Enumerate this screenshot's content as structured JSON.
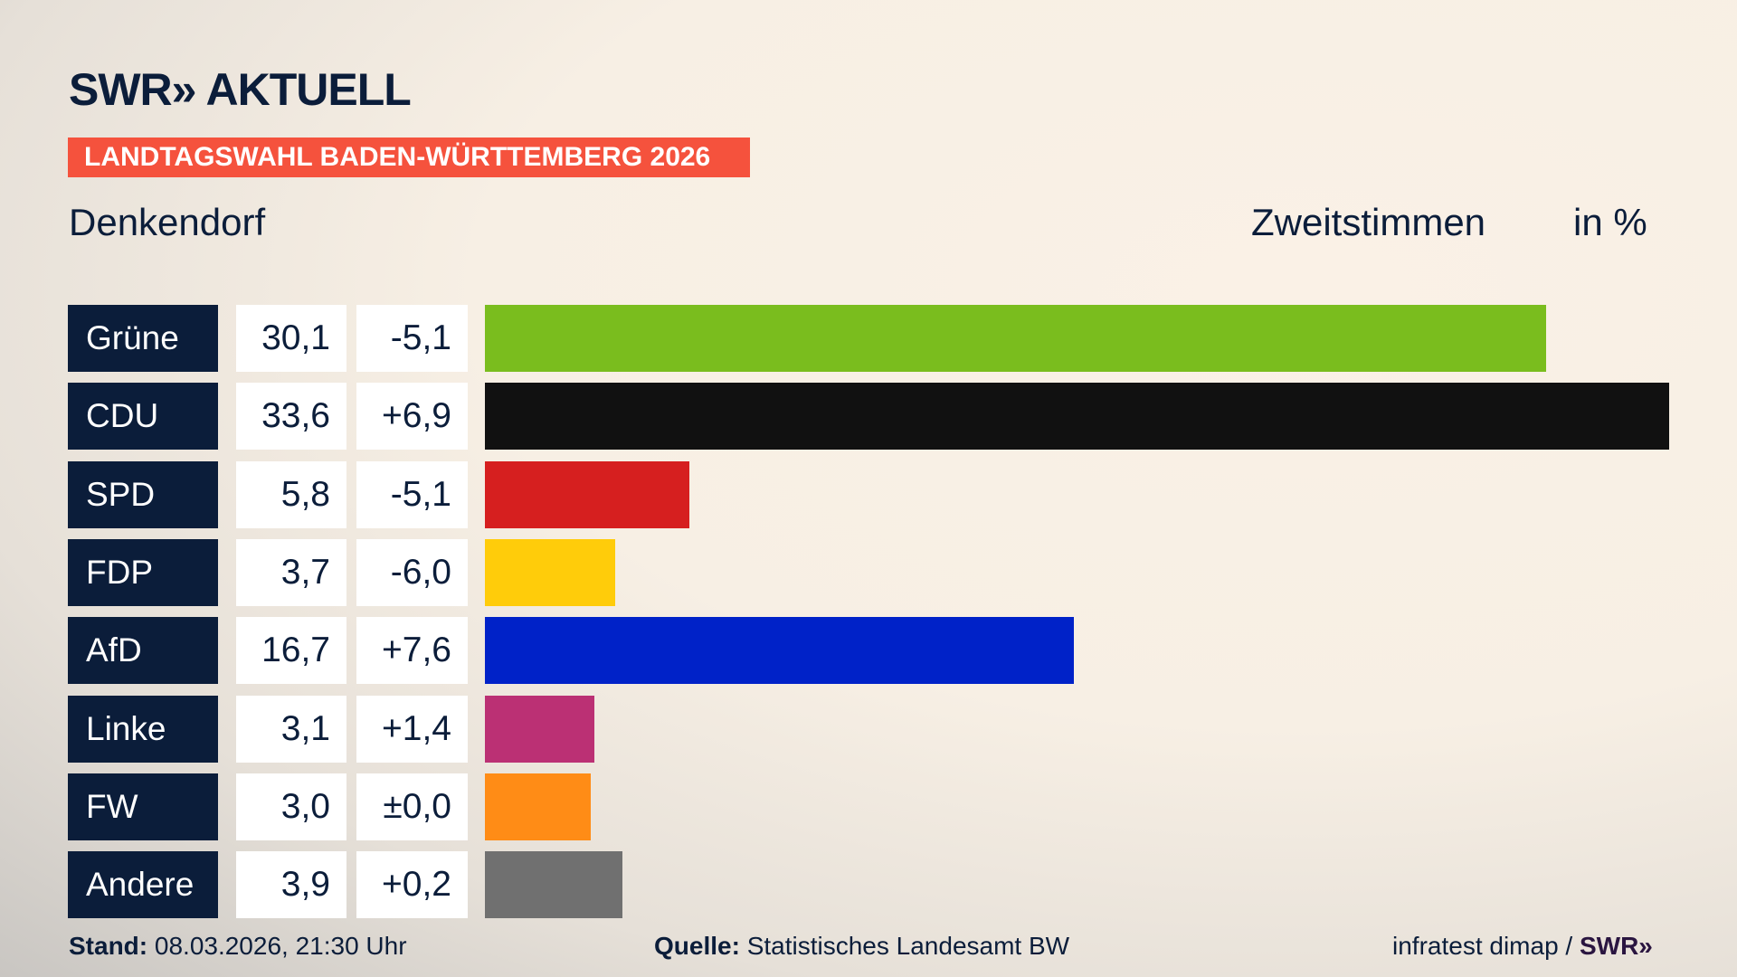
{
  "header": {
    "logo": "SWR» AKTUELL",
    "banner": "LANDTAGSWAHL BADEN-WÜRTTEMBERG 2026",
    "place": "Denkendorf",
    "vote_type": "Zweitstimmen",
    "unit": "in %"
  },
  "chart_data": {
    "type": "bar",
    "orientation": "horizontal",
    "xlim": [
      0,
      33.6
    ],
    "grid": false,
    "categories": [
      "Grüne",
      "CDU",
      "SPD",
      "FDP",
      "AfD",
      "Linke",
      "FW",
      "Andere"
    ],
    "values": [
      30.1,
      33.6,
      5.8,
      3.7,
      16.7,
      3.1,
      3.0,
      3.9
    ],
    "value_labels": [
      "30,1",
      "33,6",
      "5,8",
      "3,7",
      "16,7",
      "3,1",
      "3,0",
      "3,9"
    ],
    "changes": [
      "-5,1",
      "+6,9",
      "-5,1",
      "-6,0",
      "+7,6",
      "+1,4",
      "±0,0",
      "+0,2"
    ],
    "colors": [
      "#7abd1e",
      "#111111",
      "#d61f1f",
      "#ffcc0a",
      "#0022c8",
      "#bb3074",
      "#ff8c16",
      "#707070"
    ]
  },
  "footer": {
    "stand_label": "Stand:",
    "stand_value": "08.03.2026, 21:30 Uhr",
    "source_label": "Quelle:",
    "source_value": "Statistisches Landesamt BW",
    "credit": "infratest dimap /",
    "credit_logo": "SWR»"
  }
}
